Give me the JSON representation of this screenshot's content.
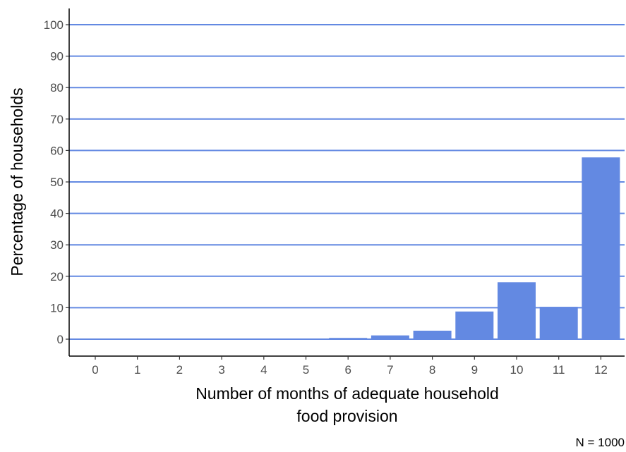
{
  "chart_data": {
    "type": "bar",
    "categories": [
      "0",
      "1",
      "2",
      "3",
      "4",
      "5",
      "6",
      "7",
      "8",
      "9",
      "10",
      "11",
      "12"
    ],
    "values": [
      0,
      0,
      0,
      0,
      0,
      0,
      0.4,
      1.2,
      2.7,
      8.8,
      18.1,
      10.3,
      57.8
    ],
    "xlabel_lines": [
      "Number of months of adequate household",
      "food provision"
    ],
    "ylabel": "Percentage of households",
    "ylim": [
      0,
      100
    ],
    "yticks": [
      "0",
      "10",
      "20",
      "30",
      "40",
      "50",
      "60",
      "70",
      "80",
      "90",
      "100"
    ],
    "caption": "N = 1000",
    "grid": "horizontal major",
    "bar_color": "#6389e2",
    "grid_color": "#6389e2"
  }
}
